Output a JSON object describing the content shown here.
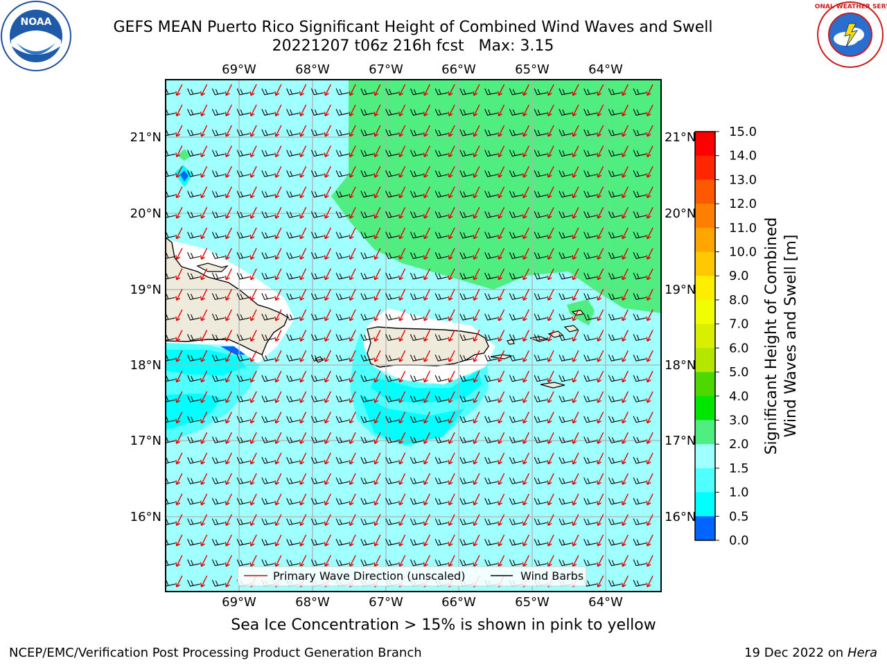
{
  "title": {
    "line1": "GEFS MEAN Puerto Rico Significant Height of Combined Wind Waves and Swell",
    "line2": "20221207 t06z 216h fcst   Max: 3.15"
  },
  "map": {
    "lon_ticks": [
      "69°W",
      "68°W",
      "67°W",
      "66°W",
      "65°W",
      "64°W"
    ],
    "lat_ticks": [
      "21°N",
      "20°N",
      "19°N",
      "18°N",
      "17°N",
      "16°N"
    ],
    "legend": {
      "wave_direction": "Primary Wave Direction (unscaled)",
      "wind_barbs": "Wind Barbs"
    }
  },
  "colorbar": {
    "title_line1": "Significant Height of Combined",
    "title_line2": "Wind Waves and Swell [m]",
    "levels": [
      "15.0",
      "14.0",
      "13.0",
      "12.0",
      "11.0",
      "10.0",
      "9.0",
      "8.0",
      "7.0",
      "6.0",
      "5.0",
      "4.0",
      "3.0",
      "2.0",
      "1.5",
      "1.0",
      "0.5",
      "0.0"
    ],
    "colors_top_to_bottom": [
      "#ff0000",
      "#ff2600",
      "#ff5900",
      "#ff8000",
      "#ffa500",
      "#ffc800",
      "#ffee00",
      "#f0ff00",
      "#d8f000",
      "#b4e600",
      "#4fd800",
      "#00e600",
      "#50ee80",
      "#a0ffff",
      "#50ffff",
      "#00ffff",
      "#0064ff",
      "#0000ff"
    ]
  },
  "note": "Sea Ice Concentration > 15% is shown in pink to yellow",
  "footer": {
    "org": "NCEP/EMC/Verification Post Processing Product Generation Branch",
    "date": "19 Dec 2022 on",
    "host": "Hera"
  },
  "logos": {
    "noaa": "NOAA",
    "nws": "NATIONAL WEATHER SERVICE"
  }
}
